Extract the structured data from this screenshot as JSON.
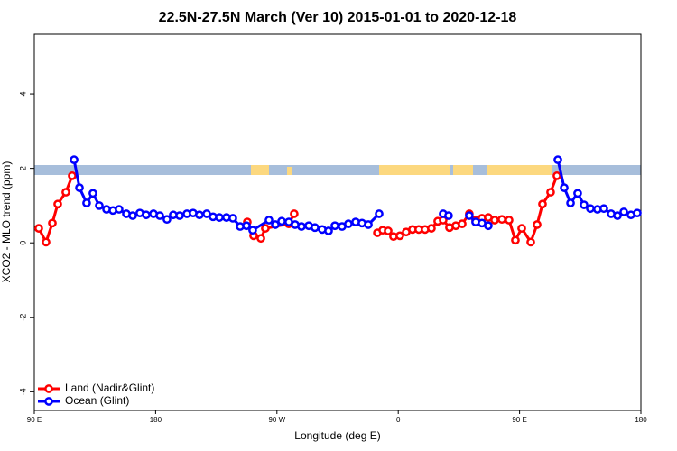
{
  "chart_data": {
    "type": "line",
    "title": "22.5N-27.5N March (Ver 10)   2015-01-01 to 2020-12-18",
    "xlabel": "Longitude (deg E)",
    "ylabel": "XCO2 - MLO trend (ppm)",
    "xlim": [
      90,
      540
    ],
    "ylim": [
      -4.5,
      5.6
    ],
    "xticks": [
      {
        "value": 90,
        "label": "90 E"
      },
      180,
      {
        "value": 270,
        "label": "90 W"
      },
      {
        "value": 360,
        "label": "0"
      },
      {
        "value": 450,
        "label": "90 E"
      },
      180
    ],
    "yticks": [
      -4,
      -2,
      0,
      2,
      4
    ],
    "legend": "bottom-left",
    "series": [
      {
        "name": "Land (Nadir&Glint)",
        "color": "#ff0000",
        "x": [
          93.3,
          98.7,
          103.4,
          107.4,
          113.4,
          118.1,
          null,
          248.0,
          252.7,
          258.1,
          261.4,
          278.8,
          282.8,
          null,
          344.5,
          348.5,
          352.5,
          356.5,
          361.2,
          365.9,
          370.6,
          375.2,
          379.9,
          384.6,
          389.3,
          393.3,
          398.0,
          402.7,
          407.4,
          412.7,
          417.4,
          422.1,
          426.8,
          431.5,
          436.9,
          442.2,
          446.9,
          451.6,
          458.3,
          463.0,
          467.0,
          473.0,
          477.7
        ],
        "values": [
          0.39,
          0.02,
          0.53,
          1.04,
          1.36,
          1.8,
          null,
          0.56,
          0.19,
          0.12,
          0.39,
          0.51,
          0.78,
          null,
          0.27,
          0.34,
          0.32,
          0.17,
          0.19,
          0.29,
          0.36,
          0.36,
          0.36,
          0.39,
          0.58,
          0.61,
          0.41,
          0.46,
          0.51,
          0.78,
          0.61,
          0.66,
          0.68,
          0.61,
          0.63,
          0.61,
          0.07,
          0.39,
          0.02,
          0.49,
          1.04,
          1.36,
          1.8
        ]
      },
      {
        "name": "Ocean (Glint)",
        "color": "#0000ff",
        "x": [
          119.5,
          123.5,
          128.8,
          133.5,
          138.2,
          143.6,
          148.3,
          152.9,
          158.3,
          163.0,
          168.3,
          173.0,
          178.4,
          183.1,
          188.4,
          193.1,
          197.8,
          203.2,
          207.8,
          212.5,
          217.9,
          222.6,
          227.3,
          232.6,
          237.3,
          242.7,
          247.4,
          252.0,
          264.1,
          268.8,
          273.5,
          278.8,
          283.5,
          288.2,
          293.6,
          298.2,
          303.6,
          308.3,
          313.0,
          318.3,
          323.0,
          328.4,
          333.1,
          337.8,
          345.8,
          null,
          393.3,
          397.3,
          null,
          412.7,
          417.4,
          422.1,
          426.8,
          null,
          478.4,
          483.1,
          487.8,
          493.1,
          497.8,
          502.5,
          507.8,
          512.5,
          517.9,
          522.6,
          527.3,
          532.6,
          537.3
        ],
        "values": [
          2.23,
          1.48,
          1.07,
          1.33,
          1.0,
          0.9,
          0.87,
          0.9,
          0.78,
          0.73,
          0.8,
          0.75,
          0.78,
          0.73,
          0.63,
          0.75,
          0.73,
          0.78,
          0.8,
          0.75,
          0.78,
          0.7,
          0.68,
          0.68,
          0.66,
          0.44,
          0.46,
          0.34,
          0.61,
          0.49,
          0.58,
          0.56,
          0.49,
          0.44,
          0.46,
          0.41,
          0.36,
          0.32,
          0.46,
          0.44,
          0.51,
          0.56,
          0.53,
          0.49,
          0.78,
          null,
          0.78,
          0.73,
          null,
          0.73,
          0.56,
          0.53,
          0.46,
          null,
          2.23,
          1.48,
          1.07,
          1.33,
          1.02,
          0.92,
          0.9,
          0.92,
          0.78,
          0.73,
          0.83,
          0.75,
          0.8
        ]
      }
    ]
  }
}
